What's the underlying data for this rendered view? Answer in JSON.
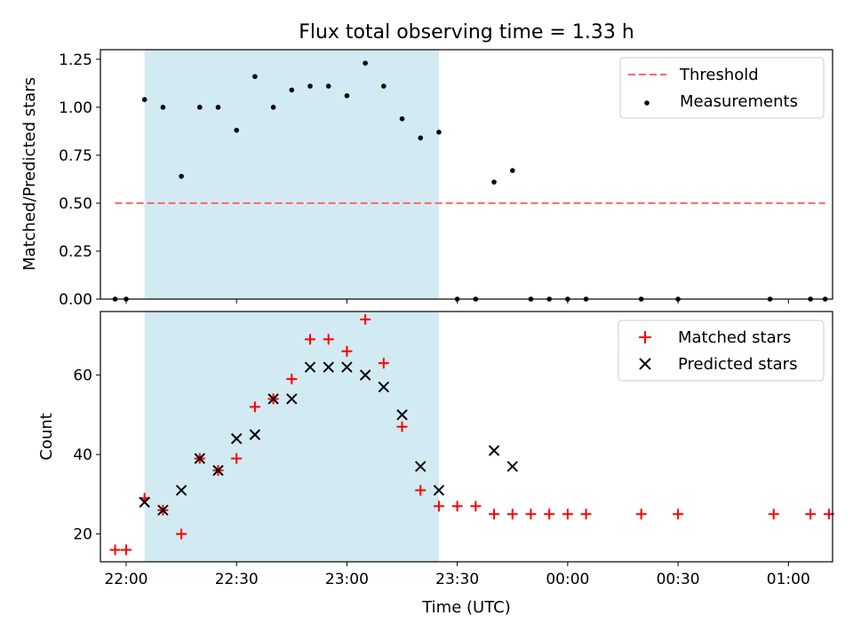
{
  "title": "Flux total observing time = 1.33 h",
  "xlabel": "Time (UTC)",
  "x_ticks": [
    {
      "t": 0,
      "label": "22:00"
    },
    {
      "t": 30,
      "label": "22:30"
    },
    {
      "t": 60,
      "label": "23:00"
    },
    {
      "t": 90,
      "label": "23:30"
    },
    {
      "t": 120,
      "label": "00:00"
    },
    {
      "t": 150,
      "label": "00:30"
    },
    {
      "t": 180,
      "label": "01:00"
    }
  ],
  "colors": {
    "shade": "#add8e6",
    "threshold": "#ff6666",
    "measurements": "#000000",
    "matched": "#ff0000",
    "predicted": "#000000"
  },
  "chart_data": [
    {
      "type": "scatter",
      "ylabel": "Matched/Predicted stars",
      "xlim": [
        "21:53",
        "01:12"
      ],
      "ylim": [
        0,
        1.3
      ],
      "y_ticks": [
        "0.00",
        "0.25",
        "0.50",
        "0.75",
        "1.00",
        "1.25"
      ],
      "shaded_region": [
        "22:05",
        "23:25"
      ],
      "legend_position": "upper right",
      "threshold": {
        "name": "Threshold",
        "y": 0.5,
        "x_range": [
          "21:57",
          "01:10"
        ]
      },
      "series": [
        {
          "name": "Measurements",
          "points": [
            [
              "21:57",
              0.0
            ],
            [
              "22:00",
              0.0
            ],
            [
              "22:05",
              1.04
            ],
            [
              "22:10",
              1.0
            ],
            [
              "22:15",
              0.64
            ],
            [
              "22:20",
              1.0
            ],
            [
              "22:25",
              1.0
            ],
            [
              "22:30",
              0.88
            ],
            [
              "22:35",
              1.16
            ],
            [
              "22:40",
              1.0
            ],
            [
              "22:45",
              1.09
            ],
            [
              "22:50",
              1.11
            ],
            [
              "22:55",
              1.11
            ],
            [
              "23:00",
              1.06
            ],
            [
              "23:05",
              1.23
            ],
            [
              "23:10",
              1.11
            ],
            [
              "23:15",
              0.94
            ],
            [
              "23:20",
              0.84
            ],
            [
              "23:25",
              0.87
            ],
            [
              "23:30",
              0.0
            ],
            [
              "23:35",
              0.0
            ],
            [
              "23:40",
              0.61
            ],
            [
              "23:45",
              0.67
            ],
            [
              "23:50",
              0.0
            ],
            [
              "23:55",
              0.0
            ],
            [
              "00:00",
              0.0
            ],
            [
              "00:05",
              0.0
            ],
            [
              "00:20",
              0.0
            ],
            [
              "00:30",
              0.0
            ],
            [
              "00:55",
              0.0
            ],
            [
              "01:06",
              0.0
            ],
            [
              "01:10",
              0.0
            ]
          ]
        }
      ]
    },
    {
      "type": "scatter",
      "ylabel": "Count",
      "xlabel": "Time (UTC)",
      "xlim": [
        "21:53",
        "01:12"
      ],
      "ylim": [
        13,
        76
      ],
      "y_ticks": [
        "20",
        "40",
        "60"
      ],
      "shaded_region": [
        "22:05",
        "23:25"
      ],
      "legend_position": "upper right",
      "series": [
        {
          "name": "Matched stars",
          "marker": "+",
          "points": [
            [
              "21:57",
              16
            ],
            [
              "22:00",
              16
            ],
            [
              "22:05",
              29
            ],
            [
              "22:10",
              26
            ],
            [
              "22:15",
              20
            ],
            [
              "22:20",
              39
            ],
            [
              "22:25",
              36
            ],
            [
              "22:30",
              39
            ],
            [
              "22:35",
              52
            ],
            [
              "22:40",
              54
            ],
            [
              "22:45",
              59
            ],
            [
              "22:50",
              69
            ],
            [
              "22:55",
              69
            ],
            [
              "23:00",
              66
            ],
            [
              "23:05",
              74
            ],
            [
              "23:10",
              63
            ],
            [
              "23:15",
              47
            ],
            [
              "23:20",
              31
            ],
            [
              "23:25",
              27
            ],
            [
              "23:30",
              27
            ],
            [
              "23:35",
              27
            ],
            [
              "23:40",
              25
            ],
            [
              "23:45",
              25
            ],
            [
              "23:50",
              25
            ],
            [
              "23:55",
              25
            ],
            [
              "00:00",
              25
            ],
            [
              "00:05",
              25
            ],
            [
              "00:20",
              25
            ],
            [
              "00:30",
              25
            ],
            [
              "00:56",
              25
            ],
            [
              "01:06",
              25
            ],
            [
              "01:11",
              25
            ]
          ]
        },
        {
          "name": "Predicted stars",
          "marker": "x",
          "points": [
            [
              "22:05",
              28
            ],
            [
              "22:10",
              26
            ],
            [
              "22:15",
              31
            ],
            [
              "22:20",
              39
            ],
            [
              "22:25",
              36
            ],
            [
              "22:30",
              44
            ],
            [
              "22:35",
              45
            ],
            [
              "22:40",
              54
            ],
            [
              "22:45",
              54
            ],
            [
              "22:50",
              62
            ],
            [
              "22:55",
              62
            ],
            [
              "23:00",
              62
            ],
            [
              "23:05",
              60
            ],
            [
              "23:10",
              57
            ],
            [
              "23:15",
              50
            ],
            [
              "23:20",
              37
            ],
            [
              "23:25",
              31
            ],
            [
              "23:40",
              41
            ],
            [
              "23:45",
              37
            ]
          ]
        }
      ]
    }
  ]
}
